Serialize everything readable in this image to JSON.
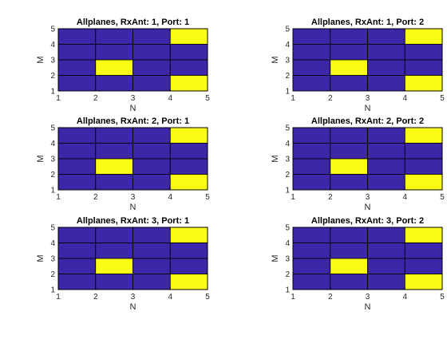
{
  "figure": {
    "colors": {
      "background": "#ffffff",
      "low": "#3d26a8",
      "high": "#f9fb15",
      "grid": "#000000"
    }
  },
  "chart_data": [
    {
      "type": "heatmap",
      "title": "Allplanes, RxAnt: 1, Port: 1",
      "xlabel": "N",
      "ylabel": "M",
      "xlim": [
        1,
        5
      ],
      "ylim": [
        1,
        5
      ],
      "xticks": [
        "1",
        "2",
        "3",
        "4",
        "5"
      ],
      "yticks": [
        "1",
        "2",
        "3",
        "4",
        "5"
      ],
      "rows_top_to_bottom": [
        [
          0,
          0,
          0,
          1
        ],
        [
          0,
          0,
          0,
          0
        ],
        [
          0,
          1,
          0,
          0
        ],
        [
          0,
          0,
          0,
          1
        ]
      ]
    },
    {
      "type": "heatmap",
      "title": "Allplanes, RxAnt: 1, Port: 2",
      "xlabel": "N",
      "ylabel": "M",
      "xlim": [
        1,
        5
      ],
      "ylim": [
        1,
        5
      ],
      "xticks": [
        "1",
        "2",
        "3",
        "4",
        "5"
      ],
      "yticks": [
        "1",
        "2",
        "3",
        "4",
        "5"
      ],
      "rows_top_to_bottom": [
        [
          0,
          0,
          0,
          1
        ],
        [
          0,
          0,
          0,
          0
        ],
        [
          0,
          1,
          0,
          0
        ],
        [
          0,
          0,
          0,
          1
        ]
      ]
    },
    {
      "type": "heatmap",
      "title": "Allplanes, RxAnt: 2, Port: 1",
      "xlabel": "N",
      "ylabel": "M",
      "xlim": [
        1,
        5
      ],
      "ylim": [
        1,
        5
      ],
      "xticks": [
        "1",
        "2",
        "3",
        "4",
        "5"
      ],
      "yticks": [
        "1",
        "2",
        "3",
        "4",
        "5"
      ],
      "rows_top_to_bottom": [
        [
          0,
          0,
          0,
          1
        ],
        [
          0,
          0,
          0,
          0
        ],
        [
          0,
          1,
          0,
          0
        ],
        [
          0,
          0,
          0,
          1
        ]
      ]
    },
    {
      "type": "heatmap",
      "title": "Allplanes, RxAnt: 2, Port: 2",
      "xlabel": "N",
      "ylabel": "M",
      "xlim": [
        1,
        5
      ],
      "ylim": [
        1,
        5
      ],
      "xticks": [
        "1",
        "2",
        "3",
        "4",
        "5"
      ],
      "yticks": [
        "1",
        "2",
        "3",
        "4",
        "5"
      ],
      "rows_top_to_bottom": [
        [
          0,
          0,
          0,
          1
        ],
        [
          0,
          0,
          0,
          0
        ],
        [
          0,
          1,
          0,
          0
        ],
        [
          0,
          0,
          0,
          1
        ]
      ]
    },
    {
      "type": "heatmap",
      "title": "Allplanes, RxAnt: 3, Port: 1",
      "xlabel": "N",
      "ylabel": "M",
      "xlim": [
        1,
        5
      ],
      "ylim": [
        1,
        5
      ],
      "xticks": [
        "1",
        "2",
        "3",
        "4",
        "5"
      ],
      "yticks": [
        "1",
        "2",
        "3",
        "4",
        "5"
      ],
      "rows_top_to_bottom": [
        [
          0,
          0,
          0,
          1
        ],
        [
          0,
          0,
          0,
          0
        ],
        [
          0,
          1,
          0,
          0
        ],
        [
          0,
          0,
          0,
          1
        ]
      ]
    },
    {
      "type": "heatmap",
      "title": "Allplanes, RxAnt: 3, Port: 2",
      "xlabel": "N",
      "ylabel": "M",
      "xlim": [
        1,
        5
      ],
      "ylim": [
        1,
        5
      ],
      "xticks": [
        "1",
        "2",
        "3",
        "4",
        "5"
      ],
      "yticks": [
        "1",
        "2",
        "3",
        "4",
        "5"
      ],
      "rows_top_to_bottom": [
        [
          0,
          0,
          0,
          1
        ],
        [
          0,
          0,
          0,
          0
        ],
        [
          0,
          1,
          0,
          0
        ],
        [
          0,
          0,
          0,
          1
        ]
      ]
    }
  ]
}
